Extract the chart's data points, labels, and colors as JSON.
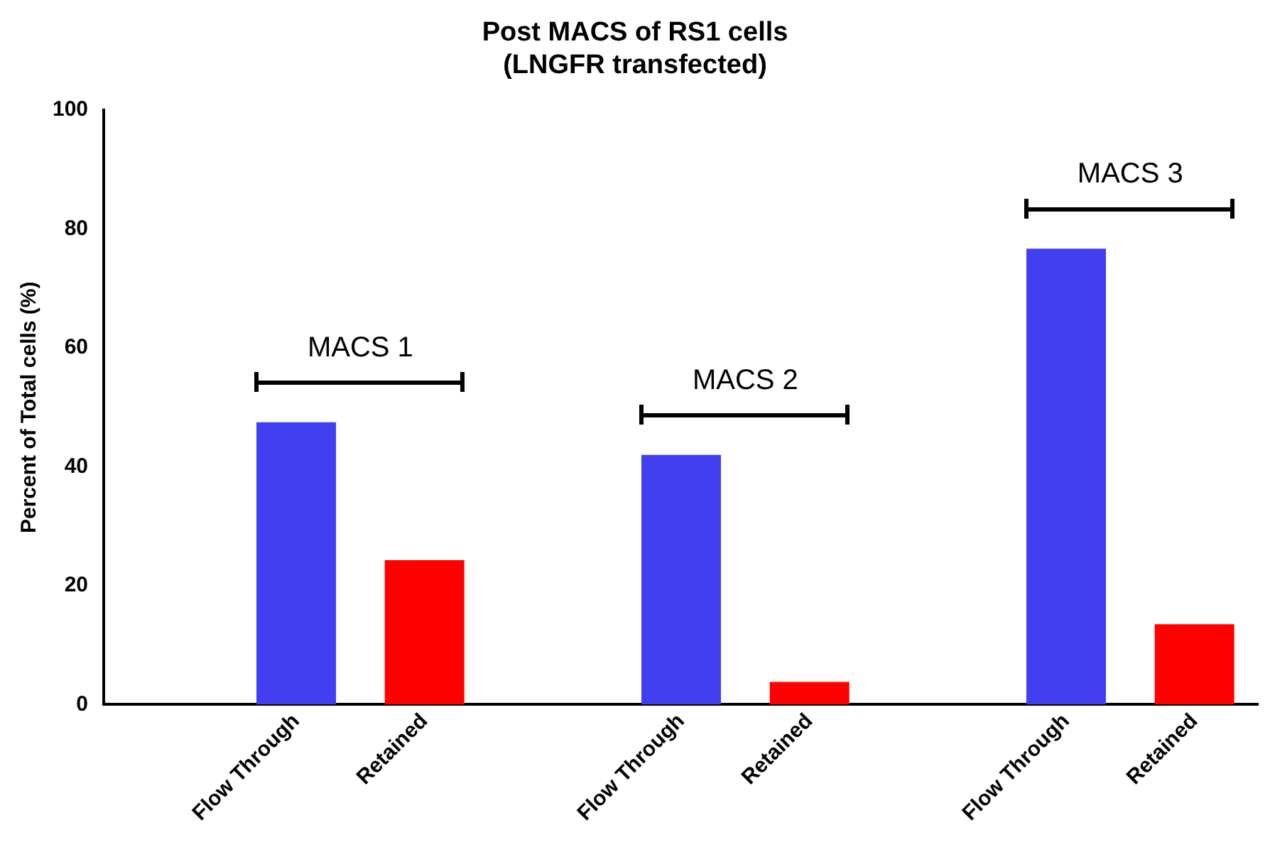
{
  "chart_data": {
    "type": "bar",
    "title": "Post MACS of RS1 cells\n(LNGFR transfected)",
    "ylabel": "Percent of Total cells (%)",
    "categories": [
      null,
      "Flow Through",
      "Retained",
      null,
      "Flow Through",
      "Retained",
      null,
      "Flow Through",
      "Retained"
    ],
    "values": [
      null,
      47.5,
      24.3,
      null,
      42,
      3.8,
      null,
      76.7,
      13.5
    ],
    "colors": [
      null,
      "#4040f0",
      "#ff0000",
      null,
      "#4040f0",
      "#ff0000",
      null,
      "#4040f0",
      "#ff0000"
    ],
    "ylim": [
      0,
      100
    ],
    "yticks": [
      0,
      20,
      40,
      60,
      80,
      100
    ],
    "grid": false,
    "legend": false,
    "annotations": [
      "MACS 1",
      "MACS 2",
      "MACS 3"
    ]
  }
}
